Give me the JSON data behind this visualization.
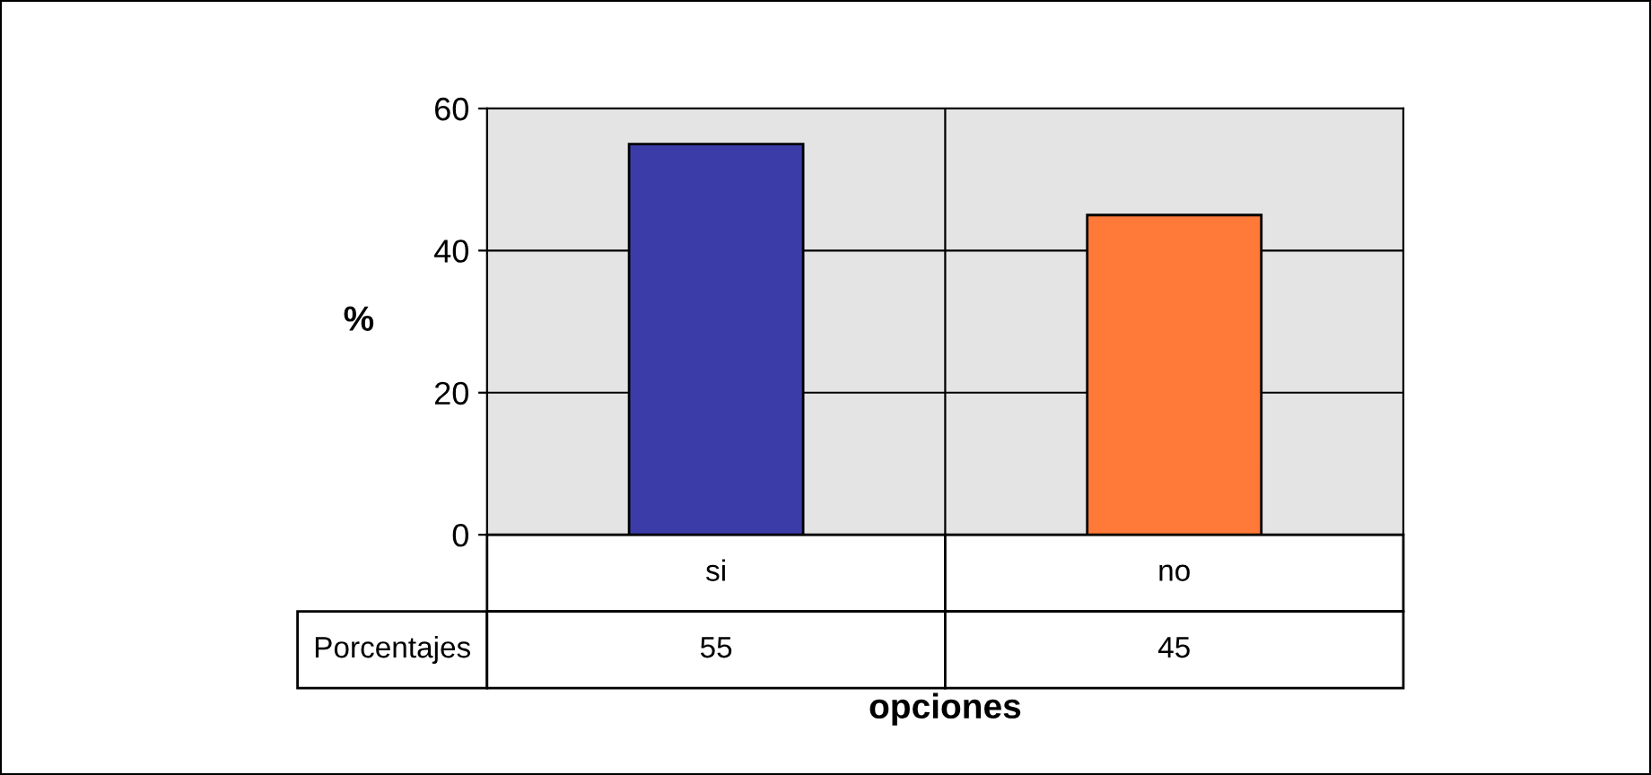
{
  "chart_data": {
    "type": "bar",
    "categories": [
      "si",
      "no"
    ],
    "series": [
      {
        "name": "Porcentajes",
        "values": [
          55,
          45
        ],
        "colors": [
          "#3c3ca8",
          "#ff7a38"
        ]
      }
    ],
    "ylabel": "%",
    "xlabel": "opciones",
    "ylim": [
      0,
      60
    ],
    "yticks": [
      0,
      20,
      40,
      60
    ],
    "grid": "y",
    "data_labels": true,
    "legend": false
  }
}
